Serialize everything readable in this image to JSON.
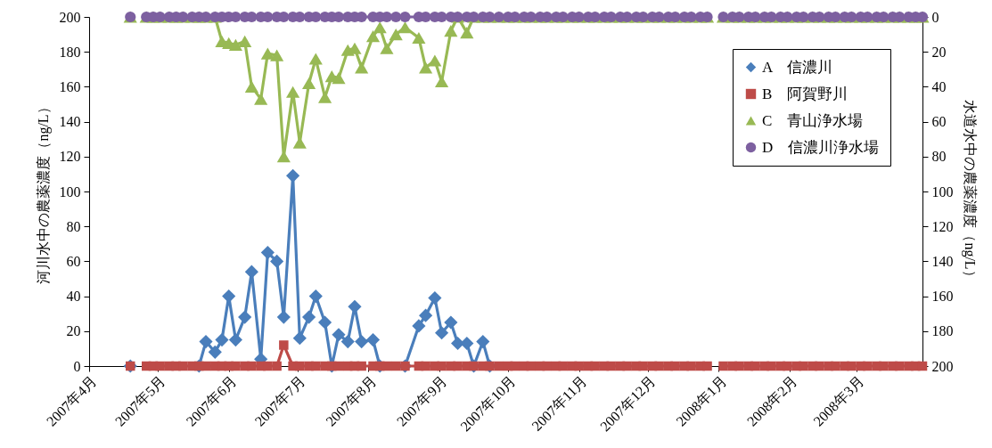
{
  "chart_data": {
    "type": "line",
    "ylabel": "河川水中の農薬濃度（ng/L）",
    "y2label": "水道水中の農薬濃度（ng/L）",
    "x": [
      "2007-04-19",
      "2007-04-22",
      "2007-04-26",
      "2007-04-29",
      "2007-05-02",
      "2007-05-06",
      "2007-05-09",
      "2007-05-12",
      "2007-05-16",
      "2007-05-19",
      "2007-05-22",
      "2007-05-26",
      "2007-05-29",
      "2007-06-01",
      "2007-06-04",
      "2007-06-08",
      "2007-06-11",
      "2007-06-15",
      "2007-06-18",
      "2007-06-22",
      "2007-06-25",
      "2007-06-29",
      "2007-07-02",
      "2007-07-06",
      "2007-07-09",
      "2007-07-13",
      "2007-07-16",
      "2007-07-19",
      "2007-07-23",
      "2007-07-26",
      "2007-07-29",
      "2007-08-03",
      "2007-08-06",
      "2007-08-09",
      "2007-08-13",
      "2007-08-17",
      "2007-08-23",
      "2007-08-26",
      "2007-08-30",
      "2007-09-02",
      "2007-09-06",
      "2007-09-09",
      "2007-09-13",
      "2007-09-16",
      "2007-09-20",
      "2007-09-23",
      "2007-09-27",
      "2007-10-01",
      "2007-10-04",
      "2007-10-08",
      "2007-10-11",
      "2007-10-15",
      "2007-10-18",
      "2007-10-22",
      "2007-10-25",
      "2007-10-29",
      "2007-11-01",
      "2007-11-05",
      "2007-11-08",
      "2007-11-12",
      "2007-11-15",
      "2007-11-19",
      "2007-11-22",
      "2007-11-26",
      "2007-11-29",
      "2007-12-03",
      "2007-12-06",
      "2007-12-10",
      "2007-12-13",
      "2007-12-17",
      "2007-12-20",
      "2007-12-24",
      "2007-12-27",
      "2007-12-31",
      "2008-01-03",
      "2008-01-07",
      "2008-01-10",
      "2008-01-14",
      "2008-01-17",
      "2008-01-21",
      "2008-01-24",
      "2008-01-28",
      "2008-01-31",
      "2008-02-04",
      "2008-02-07",
      "2008-02-11",
      "2008-02-14",
      "2008-02-18",
      "2008-02-21",
      "2008-02-25",
      "2008-02-28",
      "2008-03-03",
      "2008-03-06",
      "2008-03-10",
      "2008-03-13",
      "2008-03-17",
      "2008-03-20",
      "2008-03-24",
      "2008-03-27",
      "2008-03-30"
    ],
    "series": [
      {
        "name": "A　信濃川",
        "color": "#4a7ebb",
        "marker": "diamond",
        "values": [
          0,
          null,
          null,
          null,
          null,
          null,
          null,
          null,
          null,
          0,
          14,
          8,
          15,
          40,
          15,
          28,
          54,
          4,
          65,
          60,
          28,
          109,
          16,
          28,
          40,
          25,
          0,
          18,
          14,
          34,
          14,
          15,
          0,
          null,
          null,
          0,
          23,
          29,
          39,
          19,
          25,
          13,
          13,
          0,
          14,
          0,
          null,
          null,
          null,
          null,
          null,
          null,
          null,
          null,
          null,
          null,
          null,
          null,
          null,
          null,
          null,
          null,
          null,
          null,
          null,
          null,
          null,
          null,
          null,
          null,
          null,
          null,
          null,
          null,
          null,
          null,
          null,
          null,
          null,
          null,
          null,
          null,
          null,
          null,
          null,
          null,
          null,
          null,
          null,
          null,
          null,
          null,
          null,
          null,
          null,
          null,
          null,
          null,
          null,
          null
        ]
      },
      {
        "name": "B　阿賀野川",
        "color": "#be4b48",
        "marker": "square",
        "values": [
          0,
          null,
          0,
          0,
          0,
          0,
          0,
          0,
          0,
          0,
          0,
          0,
          0,
          0,
          0,
          0,
          0,
          0,
          0,
          0,
          12,
          0,
          0,
          0,
          0,
          0,
          0,
          0,
          0,
          0,
          0,
          0,
          0,
          0,
          0,
          0,
          0,
          0,
          0,
          0,
          0,
          0,
          0,
          0,
          0,
          0,
          0,
          0,
          0,
          0,
          0,
          0,
          0,
          0,
          0,
          0,
          0,
          0,
          0,
          0,
          0,
          0,
          0,
          0,
          0,
          0,
          0,
          0,
          0,
          0,
          0,
          0,
          0,
          null,
          0,
          0,
          0,
          0,
          0,
          0,
          0,
          0,
          0,
          0,
          0,
          0,
          0,
          0,
          0,
          0,
          0,
          0,
          0,
          0,
          0,
          0,
          0,
          0,
          0,
          0
        ]
      },
      {
        "name": "C　青山浄水場",
        "color": "#98b954",
        "marker": "triangle",
        "axis": "y2",
        "values": [
          0,
          null,
          0,
          0,
          0,
          0,
          0,
          0,
          0,
          0,
          0,
          0,
          14,
          15,
          16,
          14,
          40,
          47,
          21,
          22,
          80,
          43,
          72,
          38,
          24,
          46,
          34,
          35,
          19,
          18,
          29,
          11,
          6,
          18,
          10,
          6,
          12,
          29,
          25,
          37,
          8,
          0,
          9,
          0,
          0,
          0,
          0,
          0,
          0,
          0,
          0,
          0,
          0,
          0,
          0,
          0,
          0,
          0,
          0,
          0,
          0,
          0,
          0,
          0,
          0,
          0,
          0,
          0,
          0,
          0,
          0,
          0,
          0,
          null,
          0,
          0,
          0,
          0,
          0,
          0,
          0,
          0,
          0,
          0,
          0,
          0,
          0,
          0,
          0,
          0,
          0,
          0,
          0,
          0,
          0,
          0,
          0,
          0,
          0,
          0
        ]
      },
      {
        "name": "D　信濃川浄水場",
        "color": "#7d60a0",
        "marker": "circle",
        "axis": "y2",
        "values": [
          0,
          null,
          0,
          0,
          0,
          0,
          0,
          0,
          0,
          0,
          0,
          0,
          0,
          0,
          0,
          0,
          0,
          0,
          0,
          0,
          0,
          0,
          0,
          0,
          0,
          0,
          0,
          0,
          0,
          0,
          0,
          0,
          0,
          0,
          0,
          0,
          0,
          0,
          0,
          0,
          0,
          0,
          0,
          0,
          0,
          0,
          0,
          0,
          0,
          0,
          0,
          0,
          0,
          0,
          0,
          0,
          0,
          0,
          0,
          0,
          0,
          0,
          0,
          0,
          0,
          0,
          0,
          0,
          0,
          0,
          0,
          0,
          0,
          null,
          0,
          0,
          0,
          0,
          0,
          0,
          0,
          0,
          0,
          0,
          0,
          0,
          0,
          0,
          0,
          0,
          0,
          0,
          0,
          0,
          0,
          0,
          0,
          0,
          0,
          0
        ]
      }
    ],
    "xlim": [
      "2007-04-01",
      "2008-03-30"
    ],
    "xticks": [
      {
        "value": "2007-04-01",
        "label": "2007年4月"
      },
      {
        "value": "2007-05-01",
        "label": "2007年5月"
      },
      {
        "value": "2007-06-01",
        "label": "2007年6月"
      },
      {
        "value": "2007-07-01",
        "label": "2007年7月"
      },
      {
        "value": "2007-08-01",
        "label": "2007年8月"
      },
      {
        "value": "2007-09-01",
        "label": "2007年9月"
      },
      {
        "value": "2007-10-01",
        "label": "2007年10月"
      },
      {
        "value": "2007-11-01",
        "label": "2007年11月"
      },
      {
        "value": "2007-12-01",
        "label": "2007年12月"
      },
      {
        "value": "2008-01-01",
        "label": "2008年1月"
      },
      {
        "value": "2008-02-01",
        "label": "2008年2月"
      },
      {
        "value": "2008-03-01",
        "label": "2008年3月"
      }
    ],
    "ylim": [
      0,
      200
    ],
    "yticks": [
      0,
      20,
      40,
      60,
      80,
      100,
      120,
      140,
      160,
      180,
      200
    ],
    "y2lim": [
      200,
      0
    ],
    "y2ticks": [
      0,
      20,
      40,
      60,
      80,
      100,
      120,
      140,
      160,
      180,
      200
    ],
    "legend": "top right",
    "grid": false,
    "line_style": "solid"
  }
}
